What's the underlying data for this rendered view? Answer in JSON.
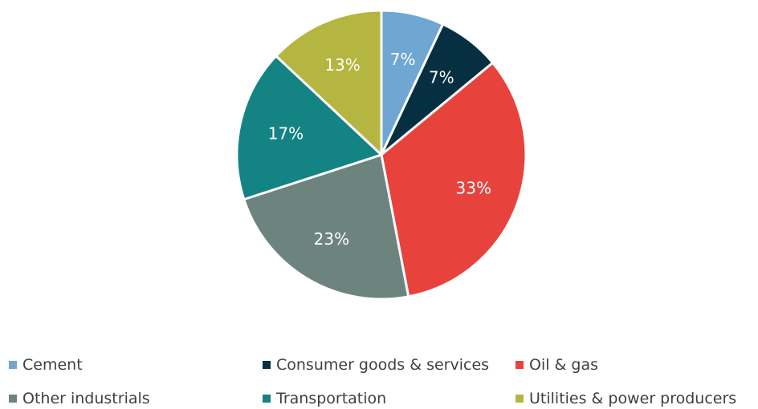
{
  "chart_data": {
    "type": "pie",
    "start_angle_deg": 0,
    "direction": "clockwise",
    "slices": [
      {
        "label": "Cement",
        "value": 7,
        "value_label": "7%",
        "color": "#6fa6d2"
      },
      {
        "label": "Consumer goods & services",
        "value": 7,
        "value_label": "7%",
        "color": "#072f42"
      },
      {
        "label": "Oil & gas",
        "value": 33,
        "value_label": "33%",
        "color": "#e8423c"
      },
      {
        "label": "Other industrials",
        "value": 23,
        "value_label": "23%",
        "color": "#6d847e"
      },
      {
        "label": "Transportation",
        "value": 17,
        "value_label": "17%",
        "color": "#148383"
      },
      {
        "label": "Utilities & power producers",
        "value": 13,
        "value_label": "13%",
        "color": "#b5b542"
      }
    ],
    "legend_placement": "bottom"
  }
}
